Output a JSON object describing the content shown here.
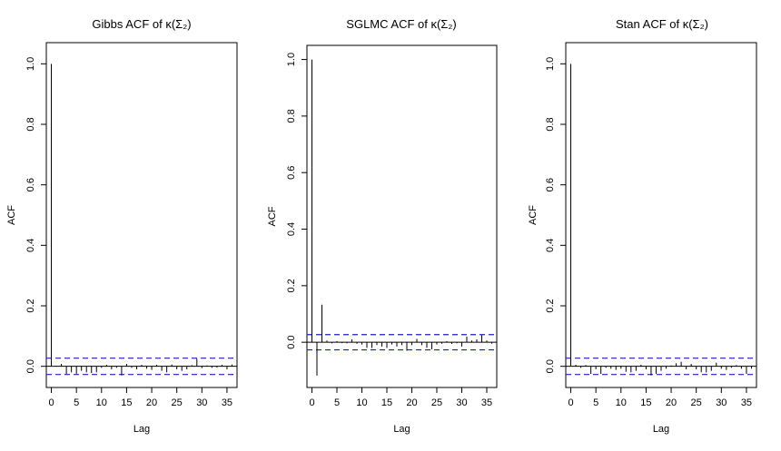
{
  "chart_data": [
    {
      "type": "acf",
      "title": "Gibbs ACF of κ(Σ₂)",
      "xlabel": "Lag",
      "ylabel": "ACF",
      "xlim": [
        -1,
        37
      ],
      "ylim": [
        -0.07,
        1.07
      ],
      "xticks": [
        0,
        5,
        10,
        15,
        20,
        25,
        30,
        35
      ],
      "yticks": [
        0.0,
        0.2,
        0.4,
        0.6,
        0.8,
        1.0
      ],
      "ytick_labels": [
        "0.0",
        "0.2",
        "0.4",
        "0.6",
        "0.8",
        "1.0"
      ],
      "conf_band": 0.027,
      "lags": [
        0,
        1,
        2,
        3,
        4,
        5,
        6,
        7,
        8,
        9,
        10,
        11,
        12,
        13,
        14,
        15,
        16,
        17,
        18,
        19,
        20,
        21,
        22,
        23,
        24,
        25,
        26,
        27,
        28,
        29,
        30,
        31,
        32,
        33,
        34,
        35,
        36
      ],
      "values": [
        1.0,
        0.002,
        0.008,
        -0.025,
        -0.02,
        -0.025,
        -0.015,
        -0.02,
        -0.022,
        -0.02,
        -0.005,
        0.005,
        -0.01,
        -0.005,
        -0.03,
        0.008,
        -0.005,
        -0.01,
        0.005,
        -0.008,
        -0.012,
        0.005,
        -0.015,
        -0.02,
        0.006,
        -0.01,
        -0.015,
        -0.01,
        0.004,
        0.025,
        -0.006,
        0.003,
        -0.005,
        -0.004,
        0.005,
        -0.01,
        0.006
      ]
    },
    {
      "type": "acf",
      "title": "SGLMC ACF of κ(Σ₂)",
      "xlabel": "Lag",
      "ylabel": "ACF",
      "xlim": [
        -1,
        37
      ],
      "ylim": [
        -0.16,
        1.05
      ],
      "xticks": [
        0,
        5,
        10,
        15,
        20,
        25,
        30,
        35
      ],
      "yticks": [
        0.0,
        0.2,
        0.4,
        0.6,
        0.8,
        1.0
      ],
      "ytick_labels": [
        "0.0",
        "0.2",
        "0.4",
        "0.6",
        "0.8",
        "1.0"
      ],
      "conf_band": 0.027,
      "lags": [
        0,
        1,
        2,
        3,
        4,
        5,
        6,
        7,
        8,
        9,
        10,
        11,
        12,
        13,
        14,
        15,
        16,
        17,
        18,
        19,
        20,
        21,
        22,
        23,
        24,
        25,
        26,
        27,
        28,
        29,
        30,
        31,
        32,
        33,
        34,
        35,
        36
      ],
      "values": [
        1.0,
        -0.118,
        0.133,
        0.006,
        -0.004,
        0.004,
        -0.003,
        -0.004,
        0.01,
        -0.005,
        -0.008,
        -0.02,
        -0.02,
        -0.01,
        -0.015,
        -0.02,
        -0.008,
        -0.015,
        -0.01,
        -0.03,
        -0.01,
        0.012,
        -0.01,
        -0.02,
        -0.025,
        -0.008,
        -0.005,
        0.004,
        -0.006,
        -0.004,
        -0.015,
        0.02,
        0.006,
        0.01,
        0.025,
        0.006,
        -0.005
      ]
    },
    {
      "type": "acf",
      "title": "Stan ACF of κ(Σ₂)",
      "xlabel": "Lag",
      "ylabel": "ACF",
      "xlim": [
        -1,
        37
      ],
      "ylim": [
        -0.07,
        1.07
      ],
      "xticks": [
        0,
        5,
        10,
        15,
        20,
        25,
        30,
        35
      ],
      "yticks": [
        0.0,
        0.2,
        0.4,
        0.6,
        0.8,
        1.0
      ],
      "ytick_labels": [
        "0.0",
        "0.2",
        "0.4",
        "0.6",
        "0.8",
        "1.0"
      ],
      "conf_band": 0.027,
      "lags": [
        0,
        1,
        2,
        3,
        4,
        5,
        6,
        7,
        8,
        9,
        10,
        11,
        12,
        13,
        14,
        15,
        16,
        17,
        18,
        19,
        20,
        21,
        22,
        23,
        24,
        25,
        26,
        27,
        28,
        29,
        30,
        31,
        32,
        33,
        34,
        35,
        36
      ],
      "values": [
        1.0,
        0.005,
        -0.005,
        0.004,
        -0.025,
        -0.01,
        -0.025,
        -0.005,
        -0.008,
        -0.012,
        -0.008,
        -0.018,
        -0.02,
        -0.015,
        0.005,
        -0.01,
        -0.03,
        -0.025,
        -0.015,
        -0.008,
        0.003,
        0.01,
        0.015,
        -0.01,
        0.008,
        -0.01,
        -0.02,
        -0.02,
        -0.015,
        0.012,
        -0.008,
        -0.012,
        -0.005,
        0.004,
        -0.008,
        -0.025,
        -0.008
      ]
    }
  ]
}
